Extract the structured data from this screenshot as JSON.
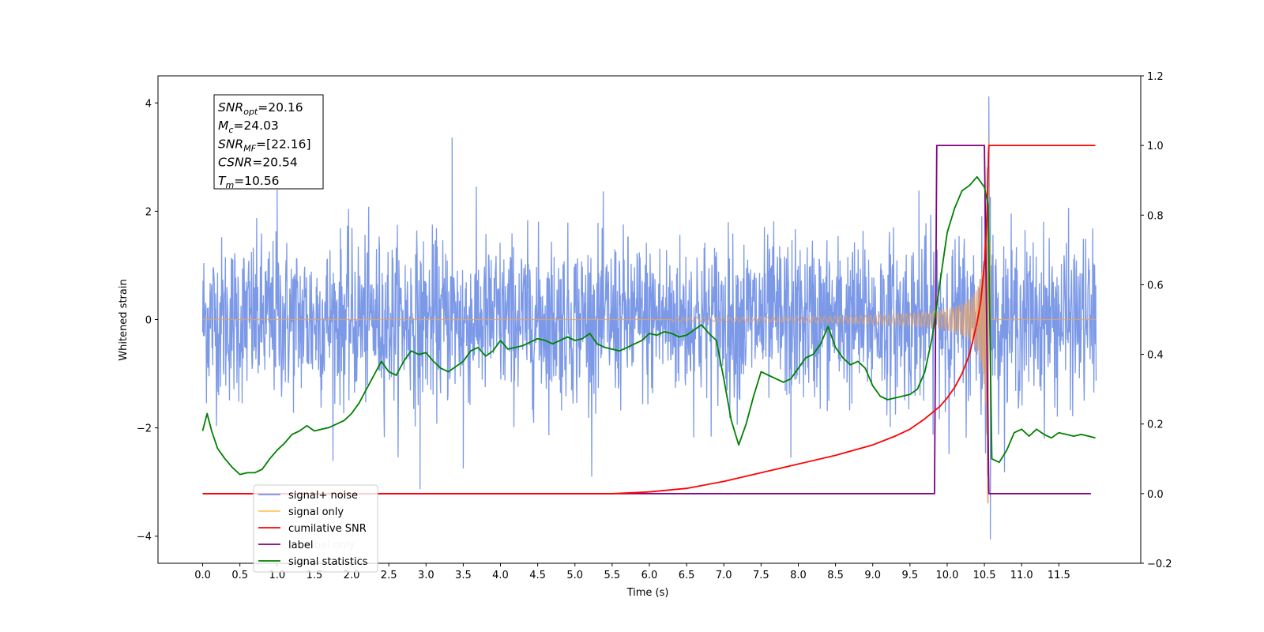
{
  "chart_data": {
    "type": "line",
    "xlabel": "Time (s)",
    "ylabel": "Whitened strain",
    "xlim": [
      -0.6,
      12.6
    ],
    "ylim": [
      -4.5,
      4.5
    ],
    "y2lim": [
      -0.2,
      1.2
    ],
    "x_ticks": [
      "0.0",
      "0.5",
      "1.0",
      "1.5",
      "2.0",
      "2.5",
      "3.0",
      "3.5",
      "4.0",
      "4.5",
      "5.0",
      "5.5",
      "6.0",
      "6.5",
      "7.0",
      "7.5",
      "8.0",
      "8.5",
      "9.0",
      "9.5",
      "10.0",
      "10.5",
      "11.0",
      "11.5"
    ],
    "y_ticks": [
      "−4",
      "−2",
      "0",
      "2",
      "4"
    ],
    "y2_ticks": [
      "−0.2",
      "0.0",
      "0.2",
      "0.4",
      "0.6",
      "0.8",
      "1.0",
      "1.2"
    ],
    "grid": false,
    "legend_position": "lower-left",
    "annotation": {
      "lines": [
        {
          "base": "SNR",
          "sub": "opt",
          "rest": "=20.16"
        },
        {
          "base": "M",
          "sub": "c",
          "rest": "=24.03"
        },
        {
          "base": "SNR",
          "sub": "MF",
          "rest": "=[22.16]"
        },
        {
          "base": "CSNR",
          "sub": "",
          "rest": "=20.54"
        },
        {
          "base": "T",
          "sub": "m",
          "rest": "=10.56"
        }
      ]
    },
    "legend": [
      {
        "label": "signal+ noise",
        "color": "#7593e7"
      },
      {
        "label": "signal only",
        "color": "#ffc760"
      },
      {
        "label": "cumilative SNR",
        "color": "#ff0000"
      },
      {
        "label": "label",
        "color": "#800080"
      },
      {
        "label": "signal statistics",
        "color": "#008000"
      }
    ],
    "hidden_legend_text": "label only",
    "series": [
      {
        "name": "signal+ noise",
        "axis": "left",
        "color": "#7593e7",
        "noise_sigma": 0.75,
        "x_start": 0.0,
        "x_end": 12.0,
        "spikes": [
          [
            2.92,
            -3.13
          ],
          [
            3.35,
            3.36
          ],
          [
            3.5,
            -2.75
          ],
          [
            10.56,
            4.12
          ],
          [
            10.58,
            -4.06
          ],
          [
            1.0,
            2.4
          ],
          [
            7.9,
            -2.55
          ],
          [
            9.62,
            2.38
          ]
        ]
      },
      {
        "name": "signal only",
        "axis": "left",
        "color": "#e8a060",
        "chirp_start": 6.3,
        "merger_time": 10.56,
        "peak_amplitude": 3.4
      },
      {
        "name": "cumilative SNR",
        "axis": "right",
        "color": "#ff0000",
        "x": [
          0.0,
          5.5,
          6.0,
          6.5,
          7.0,
          7.5,
          8.0,
          8.5,
          9.0,
          9.3,
          9.5,
          9.7,
          9.9,
          10.0,
          10.1,
          10.2,
          10.3,
          10.4,
          10.45,
          10.5,
          10.53,
          10.56,
          10.6,
          11.0,
          11.5,
          11.99
        ],
        "values": [
          0.0,
          0.0,
          0.005,
          0.015,
          0.035,
          0.06,
          0.085,
          0.11,
          0.14,
          0.165,
          0.185,
          0.215,
          0.25,
          0.275,
          0.305,
          0.345,
          0.4,
          0.49,
          0.55,
          0.66,
          0.77,
          1.0,
          1.0,
          1.0,
          1.0,
          1.0
        ]
      },
      {
        "name": "label",
        "axis": "right",
        "color": "#800080",
        "x": [
          0.0,
          9.83,
          9.86,
          10.5,
          10.56,
          11.93
        ],
        "values": [
          0.0,
          0.0,
          1.0,
          1.0,
          0.0,
          0.0
        ]
      },
      {
        "name": "signal statistics",
        "axis": "right",
        "color": "#008000",
        "x": [
          0.0,
          0.06,
          0.12,
          0.2,
          0.3,
          0.4,
          0.5,
          0.6,
          0.7,
          0.8,
          0.9,
          1.0,
          1.1,
          1.2,
          1.3,
          1.4,
          1.5,
          1.6,
          1.7,
          1.8,
          1.9,
          2.0,
          2.1,
          2.2,
          2.3,
          2.4,
          2.5,
          2.6,
          2.7,
          2.8,
          2.9,
          3.0,
          3.1,
          3.2,
          3.3,
          3.4,
          3.5,
          3.6,
          3.7,
          3.8,
          3.9,
          4.0,
          4.1,
          4.2,
          4.3,
          4.4,
          4.5,
          4.6,
          4.7,
          4.8,
          4.9,
          5.0,
          5.1,
          5.2,
          5.3,
          5.4,
          5.5,
          5.6,
          5.7,
          5.8,
          5.9,
          6.0,
          6.1,
          6.2,
          6.3,
          6.4,
          6.5,
          6.6,
          6.7,
          6.8,
          6.9,
          7.0,
          7.1,
          7.2,
          7.3,
          7.4,
          7.5,
          7.6,
          7.7,
          7.8,
          7.9,
          8.0,
          8.1,
          8.2,
          8.3,
          8.4,
          8.5,
          8.6,
          8.7,
          8.8,
          8.9,
          9.0,
          9.1,
          9.2,
          9.3,
          9.4,
          9.5,
          9.6,
          9.7,
          9.8,
          9.9,
          10.0,
          10.1,
          10.2,
          10.3,
          10.4,
          10.5,
          10.55,
          10.6,
          10.7,
          10.8,
          10.9,
          11.0,
          11.1,
          11.2,
          11.3,
          11.4,
          11.5,
          11.6,
          11.7,
          11.8,
          11.9,
          11.99
        ],
        "values": [
          0.18,
          0.23,
          0.18,
          0.13,
          0.1,
          0.075,
          0.055,
          0.06,
          0.06,
          0.07,
          0.1,
          0.125,
          0.145,
          0.17,
          0.18,
          0.195,
          0.18,
          0.185,
          0.19,
          0.2,
          0.21,
          0.23,
          0.26,
          0.3,
          0.34,
          0.38,
          0.35,
          0.34,
          0.38,
          0.41,
          0.4,
          0.405,
          0.38,
          0.36,
          0.35,
          0.365,
          0.38,
          0.41,
          0.42,
          0.395,
          0.41,
          0.44,
          0.415,
          0.42,
          0.425,
          0.435,
          0.445,
          0.44,
          0.43,
          0.44,
          0.45,
          0.44,
          0.445,
          0.46,
          0.43,
          0.42,
          0.415,
          0.41,
          0.42,
          0.43,
          0.44,
          0.46,
          0.455,
          0.465,
          0.46,
          0.45,
          0.455,
          0.47,
          0.485,
          0.46,
          0.44,
          0.33,
          0.21,
          0.14,
          0.2,
          0.28,
          0.35,
          0.34,
          0.33,
          0.32,
          0.33,
          0.36,
          0.39,
          0.4,
          0.43,
          0.48,
          0.42,
          0.39,
          0.37,
          0.38,
          0.36,
          0.31,
          0.28,
          0.27,
          0.275,
          0.28,
          0.285,
          0.3,
          0.35,
          0.45,
          0.6,
          0.75,
          0.82,
          0.87,
          0.885,
          0.91,
          0.88,
          0.83,
          0.1,
          0.09,
          0.125,
          0.175,
          0.185,
          0.165,
          0.185,
          0.17,
          0.16,
          0.175,
          0.17,
          0.165,
          0.17,
          0.165,
          0.16
        ]
      }
    ]
  }
}
